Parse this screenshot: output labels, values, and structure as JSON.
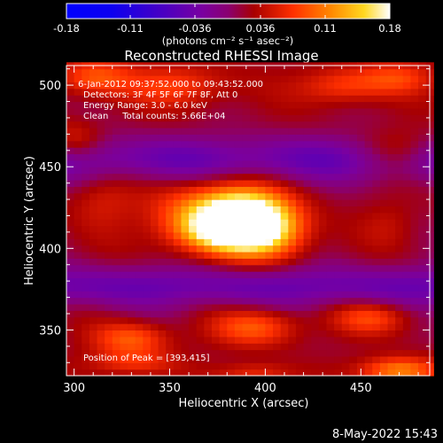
{
  "colorbar": {
    "ticks": [
      "-0.18",
      "-0.11",
      "-0.036",
      "0.036",
      "0.11",
      "0.18"
    ],
    "unit_label": "(photons cm⁻² s⁻¹ asec⁻²)"
  },
  "plot": {
    "title": "Reconstructed RHESSI Image",
    "info": {
      "time_range": "6-Jan-2012 09:37:52.000 to 09:43:52.000",
      "detectors": "Detectors: 3F 4F 5F 6F 7F 8F, Att 0",
      "energy": "Energy Range: 3.0 - 6.0 keV",
      "clean": "Clean     Total counts: 5.66E+04"
    },
    "peak_label": "Position of Peak = [393,415]"
  },
  "footer": {
    "date": "8-May-2022 15:43"
  },
  "chart_data": {
    "type": "heatmap",
    "title": "Reconstructed RHESSI Image",
    "xlabel": "Heliocentric X (arcsec)",
    "ylabel": "Heliocentric Y (arcsec)",
    "xlim": [
      296,
      486
    ],
    "ylim": [
      322,
      512
    ],
    "xticks": [
      300,
      350,
      400,
      450
    ],
    "yticks": [
      350,
      400,
      450,
      500
    ],
    "colorbar_range": [
      -0.18,
      0.18
    ],
    "colormap": "red-temperature",
    "peak": {
      "x": 393,
      "y": 415,
      "value": 0.18
    },
    "blobs": [
      {
        "x": 390,
        "y": 417,
        "sx": 16,
        "sy": 13,
        "a": 0.2
      },
      {
        "x": 368,
        "y": 420,
        "sx": 20,
        "sy": 14,
        "a": 0.09
      },
      {
        "x": 405,
        "y": 410,
        "sx": 14,
        "sy": 12,
        "a": 0.06
      },
      {
        "x": 372,
        "y": 410,
        "sx": 14,
        "sy": 8,
        "a": 0.05
      },
      {
        "x": 310,
        "y": 505,
        "sx": 14,
        "sy": 8,
        "a": 0.07
      },
      {
        "x": 355,
        "y": 500,
        "sx": 18,
        "sy": 9,
        "a": 0.06
      },
      {
        "x": 440,
        "y": 500,
        "sx": 16,
        "sy": 8,
        "a": 0.06
      },
      {
        "x": 470,
        "y": 505,
        "sx": 14,
        "sy": 7,
        "a": 0.05
      },
      {
        "x": 300,
        "y": 465,
        "sx": 10,
        "sy": 9,
        "a": 0.05
      },
      {
        "x": 470,
        "y": 460,
        "sx": 14,
        "sy": 9,
        "a": 0.05
      },
      {
        "x": 330,
        "y": 345,
        "sx": 14,
        "sy": 7,
        "a": 0.07
      },
      {
        "x": 395,
        "y": 352,
        "sx": 16,
        "sy": 8,
        "a": 0.07
      },
      {
        "x": 455,
        "y": 358,
        "sx": 14,
        "sy": 7,
        "a": 0.06
      },
      {
        "x": 330,
        "y": 330,
        "sx": 16,
        "sy": 6,
        "a": 0.05
      },
      {
        "x": 470,
        "y": 325,
        "sx": 14,
        "sy": 6,
        "a": 0.1
      },
      {
        "x": 395,
        "y": 323,
        "sx": 14,
        "sy": 5,
        "a": 0.05
      },
      {
        "x": 315,
        "y": 430,
        "sx": 12,
        "sy": 12,
        "a": 0.03
      },
      {
        "x": 465,
        "y": 415,
        "sx": 10,
        "sy": 10,
        "a": 0.02
      }
    ],
    "dips": [
      {
        "y": 455,
        "sy": 10,
        "a": 0.06
      },
      {
        "y": 377,
        "sy": 9,
        "a": 0.06
      }
    ]
  }
}
